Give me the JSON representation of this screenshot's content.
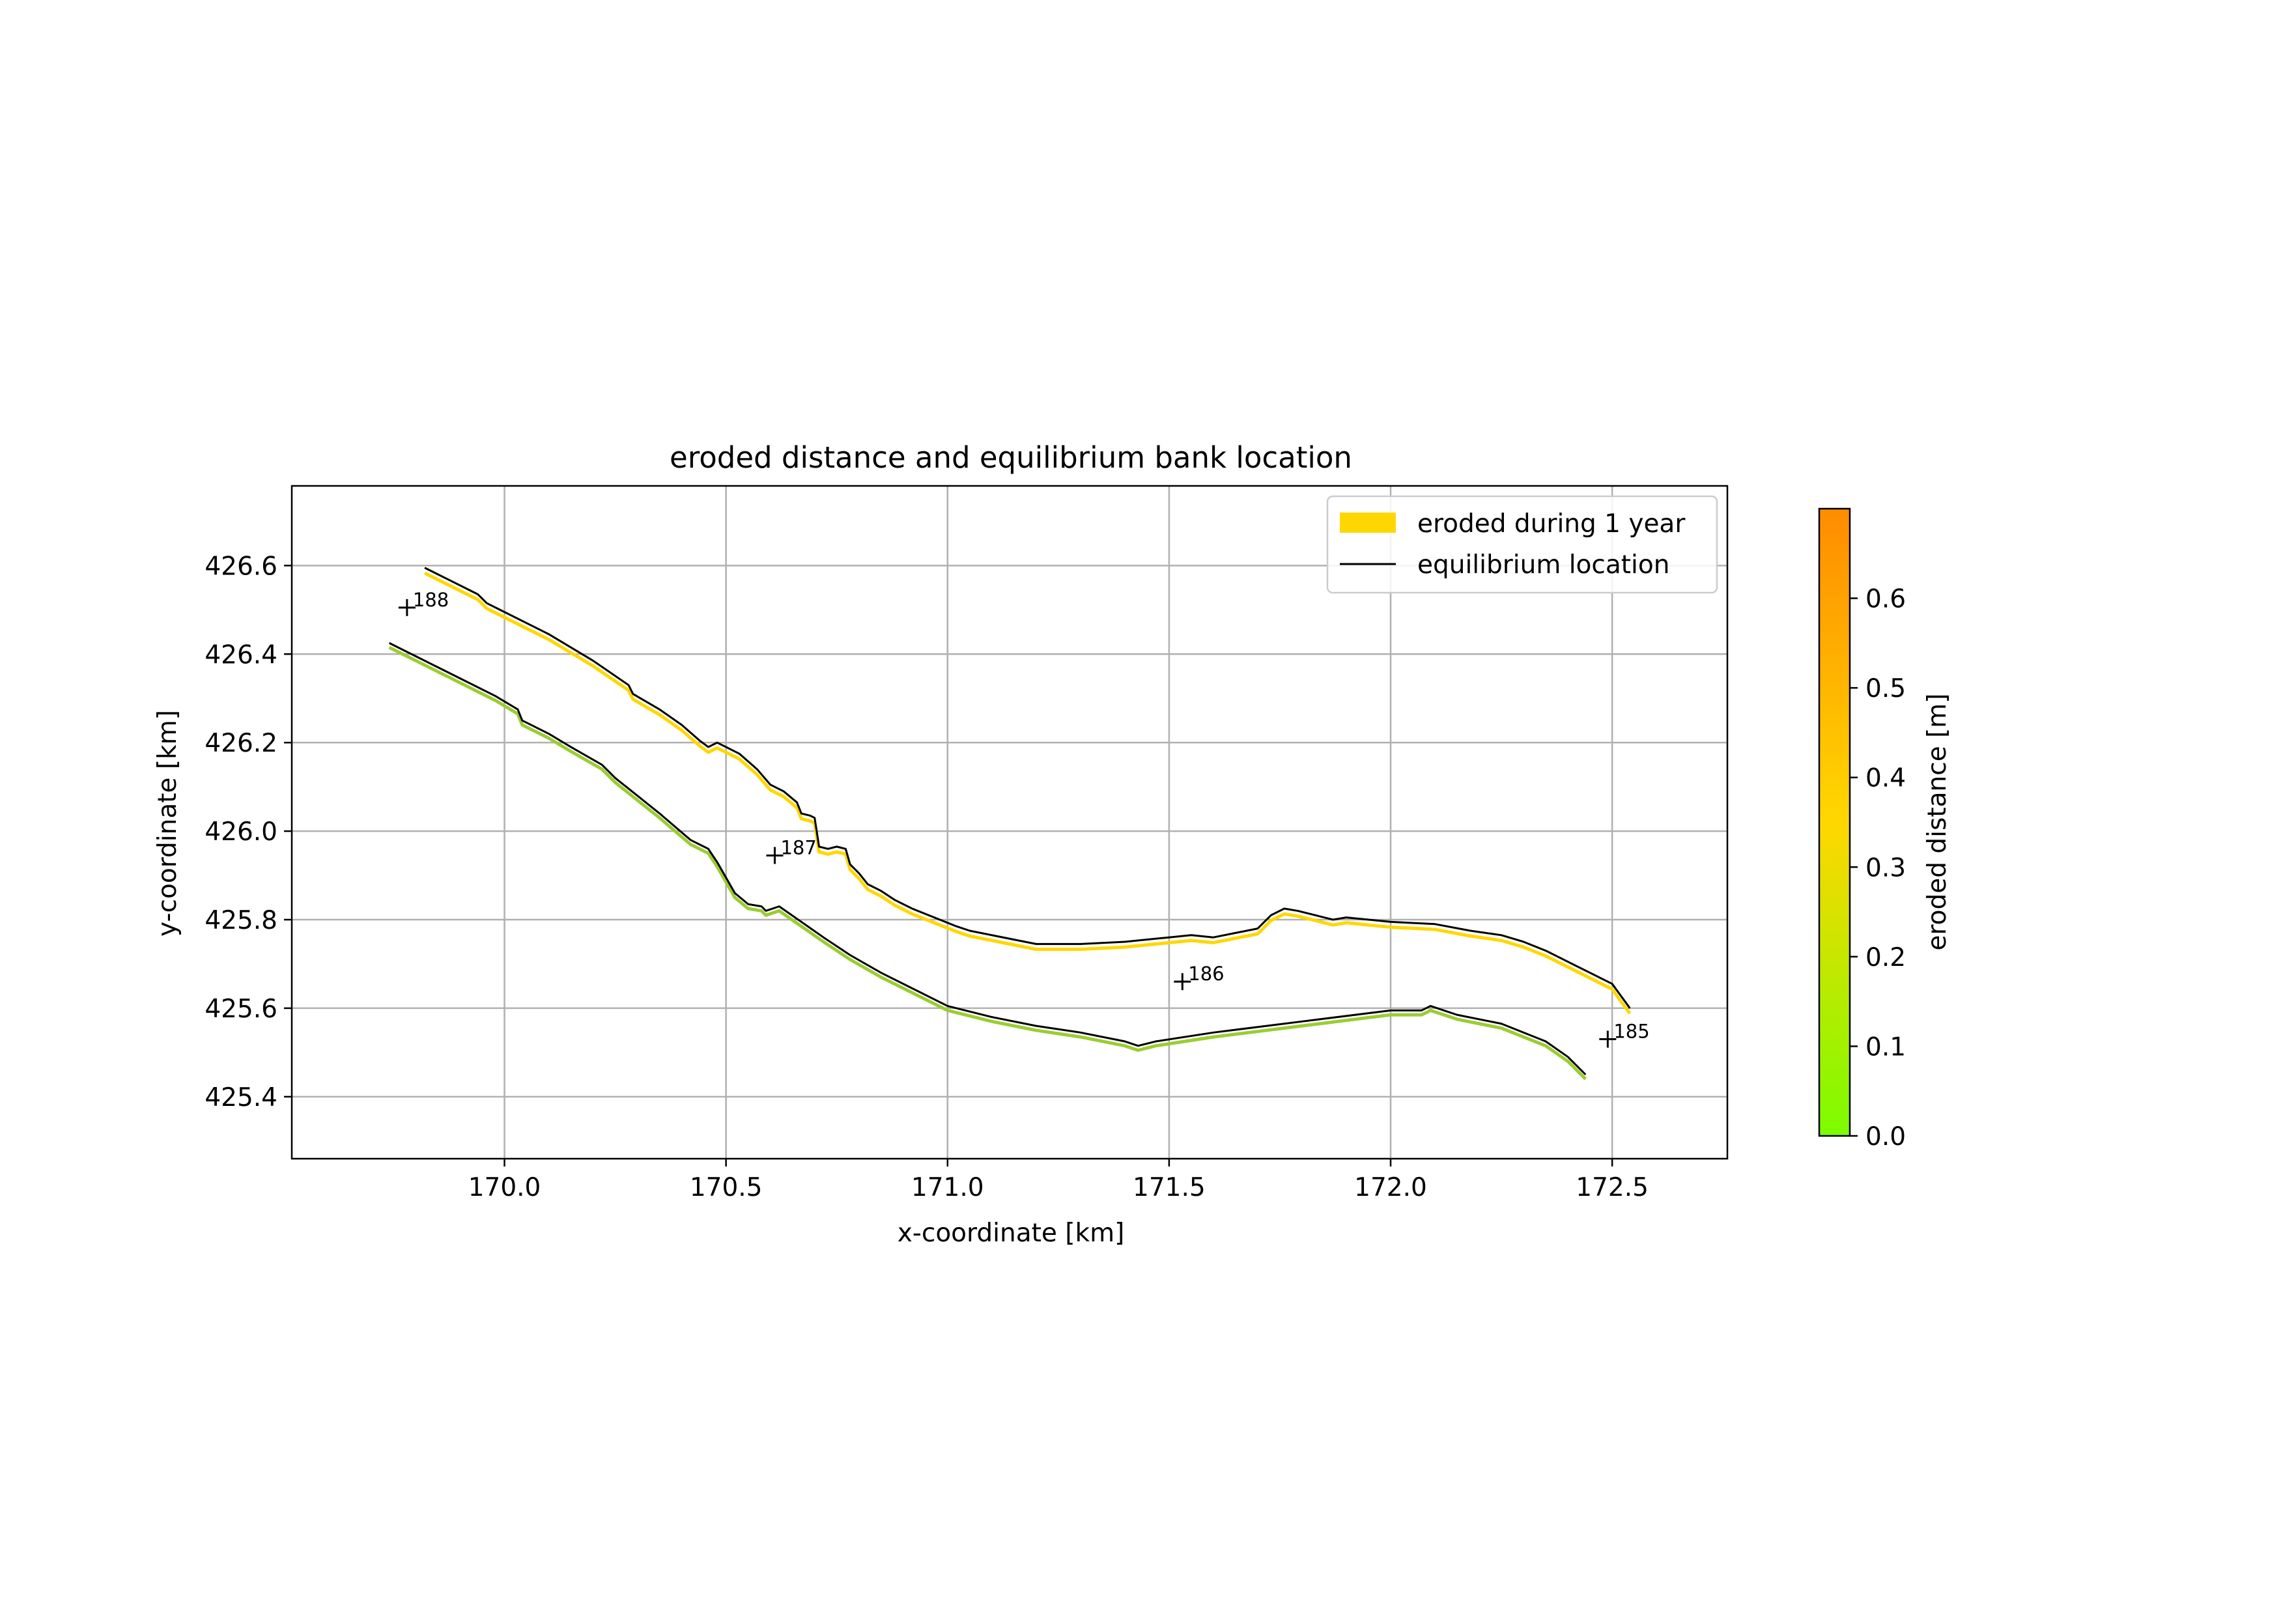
{
  "chart_data": {
    "type": "line",
    "title": "eroded distance and equilibrium bank location",
    "xlabel": "x-coordinate [km]",
    "ylabel": "y-coordinate [km]",
    "xlim": [
      169.52,
      172.76
    ],
    "ylim": [
      425.26,
      426.78
    ],
    "xticks": [
      "170.0",
      "170.5",
      "171.0",
      "171.5",
      "172.0",
      "172.5"
    ],
    "yticks": [
      "425.4",
      "425.6",
      "425.8",
      "426.0",
      "426.2",
      "426.4",
      "426.6"
    ],
    "grid": true,
    "legend_position": "top-right",
    "legend": [
      {
        "label": "eroded during 1 year",
        "kind": "patch",
        "color": "#FFD700"
      },
      {
        "label": "equilibrium location",
        "kind": "line",
        "color": "#000000"
      }
    ],
    "colorbar": {
      "label": "eroded distance [m]",
      "range": [
        0.0,
        0.7
      ],
      "ticks": [
        "0.0",
        "0.1",
        "0.2",
        "0.3",
        "0.4",
        "0.5",
        "0.6"
      ],
      "colors": [
        "#7CFC00",
        "#FFD700",
        "#FF8C00"
      ]
    },
    "series": [
      {
        "kind": "bank",
        "eroded_color": "#FFD700",
        "eroded_offset_km": 0.012,
        "points": [
          [
            169.82,
            426.595
          ],
          [
            169.87,
            426.57
          ],
          [
            169.94,
            426.535
          ],
          [
            169.96,
            426.515
          ],
          [
            170.05,
            426.47
          ],
          [
            170.1,
            426.445
          ],
          [
            170.2,
            426.385
          ],
          [
            170.28,
            426.33
          ],
          [
            170.29,
            426.31
          ],
          [
            170.35,
            426.275
          ],
          [
            170.4,
            426.24
          ],
          [
            170.44,
            426.205
          ],
          [
            170.46,
            426.19
          ],
          [
            170.48,
            426.2
          ],
          [
            170.5,
            426.19
          ],
          [
            170.53,
            426.175
          ],
          [
            170.57,
            426.14
          ],
          [
            170.6,
            426.105
          ],
          [
            170.63,
            426.09
          ],
          [
            170.66,
            426.065
          ],
          [
            170.67,
            426.04
          ],
          [
            170.69,
            426.035
          ],
          [
            170.7,
            426.03
          ],
          [
            170.71,
            425.965
          ],
          [
            170.73,
            425.96
          ],
          [
            170.75,
            425.965
          ],
          [
            170.77,
            425.96
          ],
          [
            170.78,
            425.925
          ],
          [
            170.8,
            425.905
          ],
          [
            170.82,
            425.88
          ],
          [
            170.85,
            425.865
          ],
          [
            170.88,
            425.845
          ],
          [
            170.92,
            425.825
          ],
          [
            170.97,
            425.805
          ],
          [
            171.02,
            425.785
          ],
          [
            171.05,
            425.775
          ],
          [
            171.1,
            425.765
          ],
          [
            171.15,
            425.755
          ],
          [
            171.2,
            425.745
          ],
          [
            171.25,
            425.745
          ],
          [
            171.3,
            425.745
          ],
          [
            171.4,
            425.75
          ],
          [
            171.5,
            425.76
          ],
          [
            171.55,
            425.765
          ],
          [
            171.6,
            425.76
          ],
          [
            171.65,
            425.77
          ],
          [
            171.7,
            425.78
          ],
          [
            171.73,
            425.81
          ],
          [
            171.76,
            425.825
          ],
          [
            171.79,
            425.82
          ],
          [
            171.83,
            425.81
          ],
          [
            171.87,
            425.8
          ],
          [
            171.9,
            425.805
          ],
          [
            172.0,
            425.795
          ],
          [
            172.1,
            425.79
          ],
          [
            172.18,
            425.775
          ],
          [
            172.25,
            425.765
          ],
          [
            172.3,
            425.75
          ],
          [
            172.35,
            425.73
          ],
          [
            172.4,
            425.705
          ],
          [
            172.45,
            425.68
          ],
          [
            172.5,
            425.655
          ],
          [
            172.54,
            425.6
          ]
        ]
      },
      {
        "kind": "bank",
        "eroded_color": "#9ACD32",
        "eroded_offset_km": 0.01,
        "points": [
          [
            169.74,
            426.425
          ],
          [
            169.8,
            426.395
          ],
          [
            169.9,
            426.345
          ],
          [
            169.98,
            426.305
          ],
          [
            170.03,
            426.275
          ],
          [
            170.04,
            426.25
          ],
          [
            170.1,
            426.22
          ],
          [
            170.15,
            426.19
          ],
          [
            170.22,
            426.15
          ],
          [
            170.25,
            426.12
          ],
          [
            170.3,
            426.08
          ],
          [
            170.35,
            426.04
          ],
          [
            170.42,
            425.98
          ],
          [
            170.46,
            425.96
          ],
          [
            170.48,
            425.93
          ],
          [
            170.52,
            425.86
          ],
          [
            170.55,
            425.835
          ],
          [
            170.58,
            425.83
          ],
          [
            170.59,
            425.82
          ],
          [
            170.62,
            425.83
          ],
          [
            170.67,
            425.795
          ],
          [
            170.72,
            425.76
          ],
          [
            170.78,
            425.72
          ],
          [
            170.85,
            425.68
          ],
          [
            170.92,
            425.645
          ],
          [
            171.0,
            425.605
          ],
          [
            171.1,
            425.58
          ],
          [
            171.2,
            425.56
          ],
          [
            171.3,
            425.545
          ],
          [
            171.4,
            425.525
          ],
          [
            171.43,
            425.515
          ],
          [
            171.47,
            425.525
          ],
          [
            171.6,
            425.545
          ],
          [
            171.8,
            425.57
          ],
          [
            172.0,
            425.595
          ],
          [
            172.07,
            425.595
          ],
          [
            172.09,
            425.605
          ],
          [
            172.15,
            425.585
          ],
          [
            172.25,
            425.565
          ],
          [
            172.35,
            425.525
          ],
          [
            172.4,
            425.49
          ],
          [
            172.44,
            425.45
          ]
        ]
      }
    ],
    "bank_markers": [
      {
        "label": "188",
        "x": 169.78,
        "y": 426.505
      },
      {
        "label": "187",
        "x": 170.61,
        "y": 425.945
      },
      {
        "label": "186",
        "x": 171.53,
        "y": 425.66
      },
      {
        "label": "185",
        "x": 172.49,
        "y": 425.53
      }
    ]
  }
}
